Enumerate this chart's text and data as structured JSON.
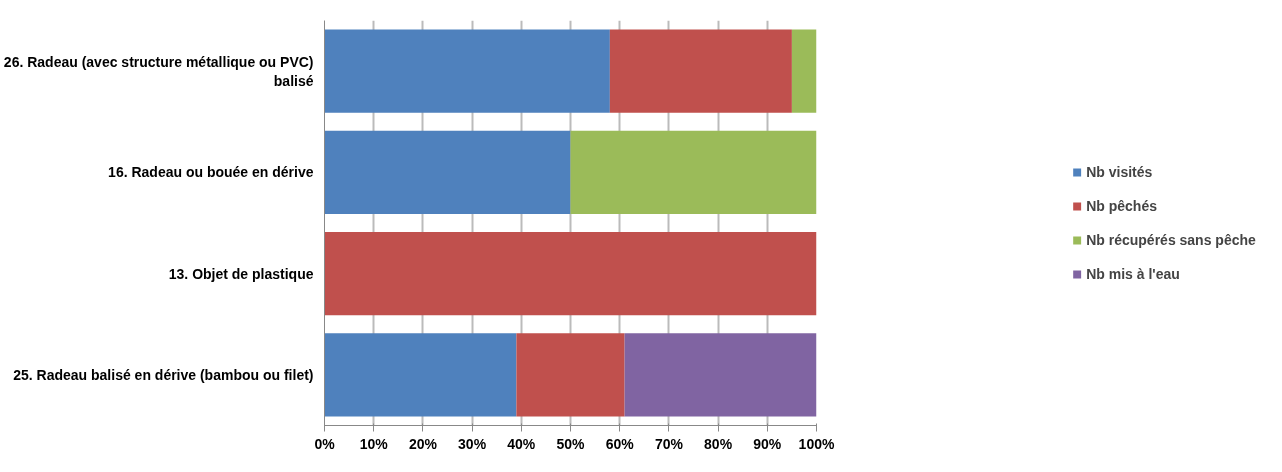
{
  "chart_data": {
    "type": "bar",
    "orientation": "horizontal",
    "stacked": true,
    "categories": [
      "26. Radeau (avec structure métallique ou PVC)\nbalisé",
      "16. Radeau ou bouée en dérive",
      "13. Objet de plastique",
      "25. Radeau balisé en dérive (bambou ou filet)"
    ],
    "series": [
      {
        "name": "Nb visités",
        "color": "#4f81bd",
        "values": [
          58,
          50,
          0,
          39
        ]
      },
      {
        "name": "Nb pêchés",
        "color": "#c0504d",
        "values": [
          37,
          0,
          100,
          22
        ]
      },
      {
        "name": "Nb récupérés sans pêche",
        "color": "#9bbb59",
        "values": [
          5,
          50,
          0,
          0
        ]
      },
      {
        "name": "Nb mis à l'eau",
        "color": "#8064a2",
        "values": [
          0,
          0,
          0,
          39
        ]
      }
    ],
    "xlim": [
      0,
      100
    ],
    "xticks": [
      {
        "value": 0,
        "label": "0%"
      },
      {
        "value": 10,
        "label": "10%"
      },
      {
        "value": 20,
        "label": "20%"
      },
      {
        "value": 30,
        "label": "30%"
      },
      {
        "value": 40,
        "label": "40%"
      },
      {
        "value": 50,
        "label": "50%"
      },
      {
        "value": 60,
        "label": "60%"
      },
      {
        "value": 70,
        "label": "70%"
      },
      {
        "value": 80,
        "label": "80%"
      },
      {
        "value": 90,
        "label": "90%"
      },
      {
        "value": 100,
        "label": "100%"
      }
    ],
    "grid": "x",
    "legend": "right"
  }
}
